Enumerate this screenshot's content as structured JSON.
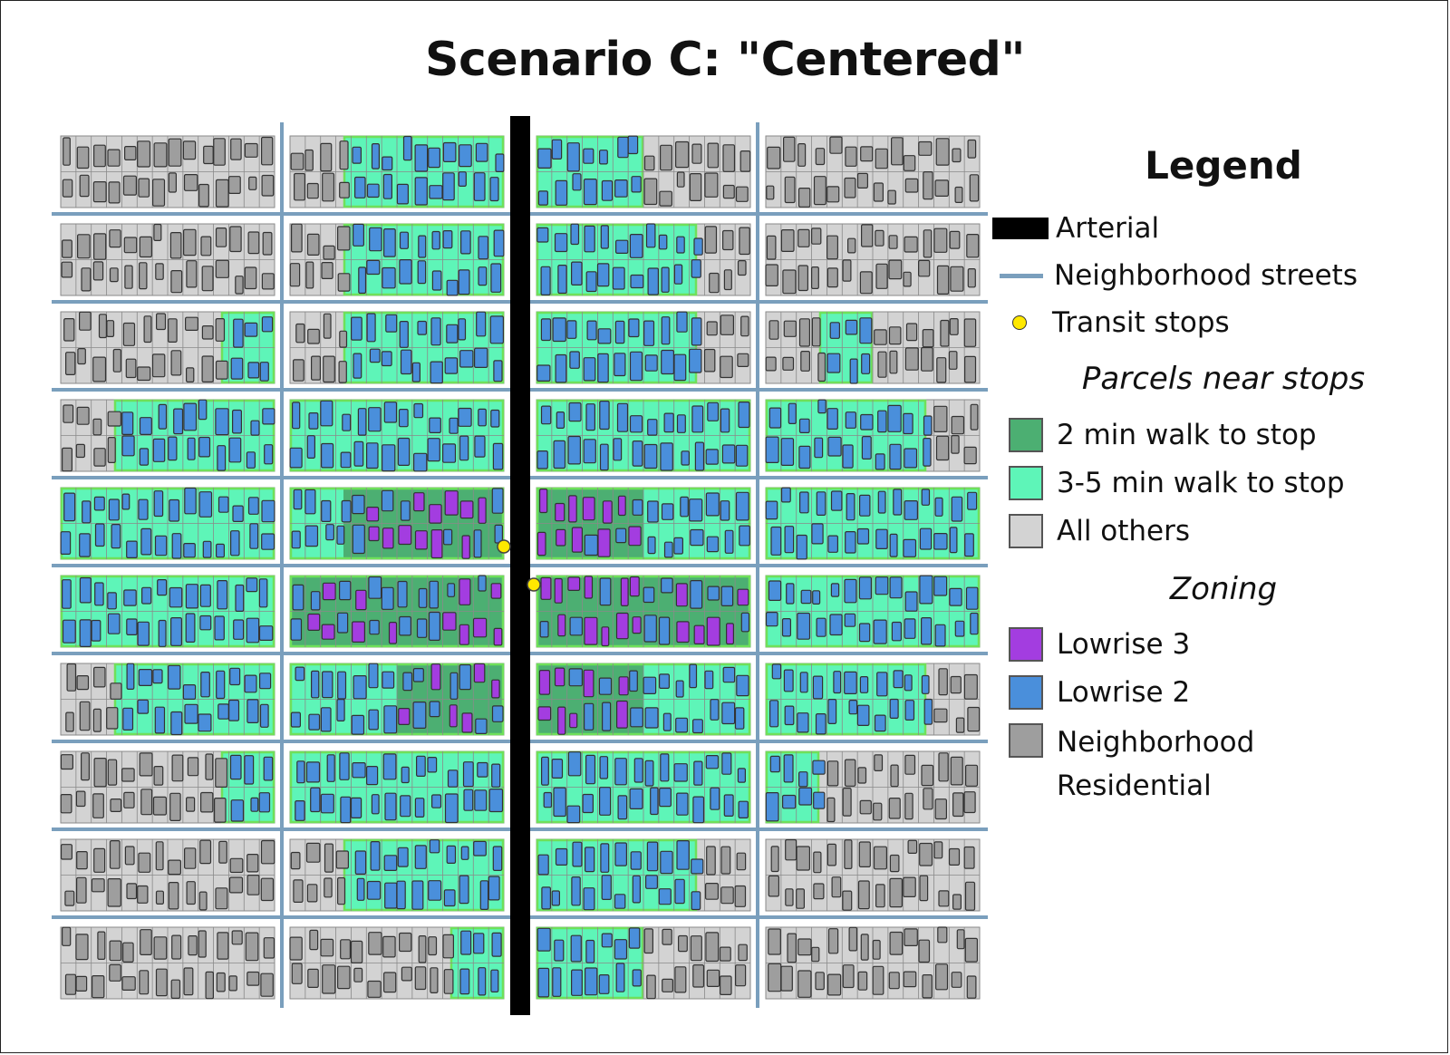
{
  "title": "Scenario C: \"Centered\"",
  "legend": {
    "title": "Legend",
    "arterial": {
      "label": "Arterial",
      "color": "#000000"
    },
    "streets": {
      "label": "Neighborhood streets",
      "color": "#7a9fbd"
    },
    "stops": {
      "label": "Transit stops",
      "color": "#ffe800"
    },
    "parcels_heading": "Parcels near stops",
    "walk2": {
      "label": "2 min walk to stop",
      "color": "#4caf72"
    },
    "walk35": {
      "label": "3-5 min walk to stop",
      "color": "#5ef5b8"
    },
    "others": {
      "label": "All others",
      "color": "#d3d3d3"
    },
    "zoning_heading": "Zoning",
    "lowrise3": {
      "label": "Lowrise 3",
      "color": "#a33de0"
    },
    "lowrise2": {
      "label": "Lowrise 2",
      "color": "#4a8fdb"
    },
    "nr_line1": "Neighborhood",
    "nr_line2": "Residential",
    "neighborhood_residential_color": "#9e9e9e"
  },
  "map": {
    "block_columns": 4,
    "block_rows": 10,
    "parcel_grid_columns": 14,
    "parcel_grid_rows": 2,
    "transit_stops": 2,
    "arterial_between_columns": [
      2,
      3
    ],
    "zone_layout": [
      [
        "oooo",
        "oxxx",
        "xxoo",
        "oooo"
      ],
      [
        "oooo",
        "oxxx",
        "xxxo",
        "oooo"
      ],
      [
        "ooox",
        "oxxx",
        "xxxo",
        "oxoo"
      ],
      [
        "oxxx",
        "xxxx",
        "xxxx",
        "xxxo"
      ],
      [
        "xxxx",
        "xwww",
        "wwxx",
        "xxxx"
      ],
      [
        "xxxx",
        "wwww",
        "wwww",
        "xxxx"
      ],
      [
        "oxxx",
        "xxww",
        "wwxx",
        "xxxo"
      ],
      [
        "ooox",
        "xxxx",
        "xxxx",
        "xooo"
      ],
      [
        "oooo",
        "oxxx",
        "xxxo",
        "oooo"
      ],
      [
        "oooo",
        "ooox",
        "xxoo",
        "oooo"
      ]
    ]
  }
}
